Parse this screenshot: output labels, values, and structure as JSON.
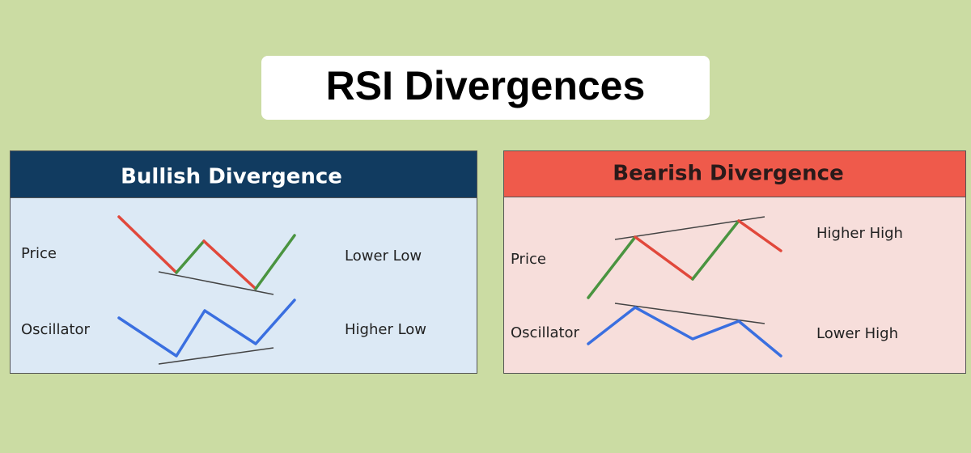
{
  "header": {
    "title": "RSI Divergences"
  },
  "panels": [
    {
      "title": "Bullish Divergence",
      "rows": [
        {
          "label": "Price",
          "description": "Lower Low"
        },
        {
          "label": "Oscillator",
          "description": "Higher Low"
        }
      ]
    },
    {
      "title": "Bearish Divergence",
      "rows": [
        {
          "label": "Price",
          "description": "Higher High"
        },
        {
          "label": "Oscillator",
          "description": "Lower High"
        }
      ]
    }
  ]
}
